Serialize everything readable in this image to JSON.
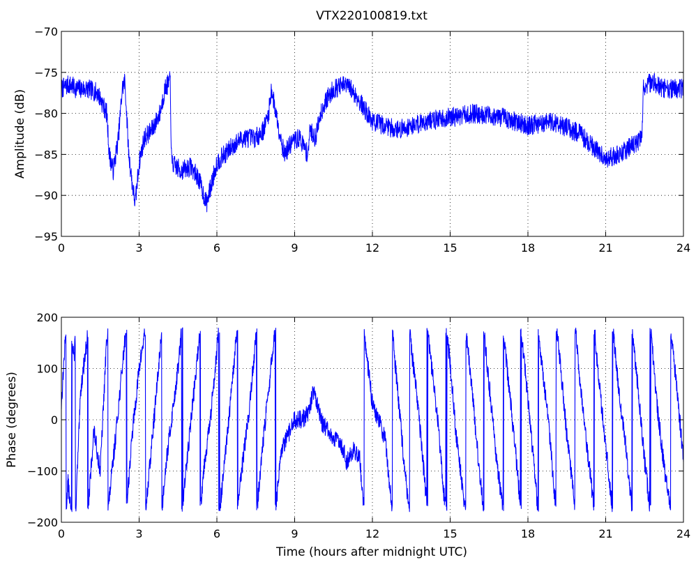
{
  "chart_data": [
    {
      "type": "line",
      "title": "VTX220100819.txt",
      "xlabel": "",
      "ylabel": "Amplitude (dB)",
      "xlim": [
        0,
        24
      ],
      "ylim": [
        -95,
        -70
      ],
      "xticks": [
        0,
        3,
        6,
        9,
        12,
        15,
        18,
        21,
        24
      ],
      "yticks": [
        -95,
        -90,
        -85,
        -80,
        -75,
        -70
      ],
      "grid": true,
      "line_color": "#0000ff",
      "series": [
        {
          "noise": 1.2,
          "x": [
            0,
            0.3,
            0.6,
            1.0,
            1.4,
            1.75,
            1.85,
            2.0,
            2.2,
            2.35,
            2.45,
            2.6,
            2.75,
            2.85,
            3.0,
            3.2,
            3.5,
            3.8,
            4.0,
            4.2,
            4.25,
            4.6,
            5.0,
            5.3,
            5.6,
            6.0,
            6.3,
            6.6,
            7.0,
            7.5,
            7.8,
            8.0,
            8.1,
            8.4,
            8.6,
            8.9,
            9.2,
            9.5,
            9.6,
            9.8,
            10.0,
            10.2,
            10.5,
            11.0,
            11.3,
            11.6,
            12.0,
            12.5,
            13.0,
            14.0,
            15.0,
            16.0,
            17.0,
            18.0,
            19.0,
            20.0,
            20.5,
            21.0,
            21.5,
            22.0,
            22.4,
            22.45,
            22.8,
            23.2,
            23.6,
            24.0
          ],
          "y": [
            -77,
            -76.5,
            -77,
            -77,
            -77.5,
            -80,
            -85,
            -87,
            -83,
            -77,
            -76,
            -85,
            -89,
            -91,
            -86,
            -83,
            -82,
            -80,
            -77,
            -76,
            -86,
            -87,
            -86.5,
            -88,
            -91,
            -86,
            -85,
            -84,
            -83,
            -83,
            -82,
            -80,
            -77,
            -82,
            -85,
            -83.5,
            -83,
            -85,
            -82,
            -83,
            -80,
            -78.5,
            -77,
            -76.5,
            -77.5,
            -79,
            -81,
            -81.5,
            -82,
            -81,
            -80.5,
            -80,
            -80.5,
            -81.5,
            -81,
            -82.5,
            -84,
            -85.5,
            -85,
            -84,
            -83,
            -77,
            -76,
            -77,
            -77,
            -77
          ]
        }
      ]
    },
    {
      "type": "line",
      "title": "",
      "xlabel": "Time (hours after midnight UTC)",
      "ylabel": "Phase (degrees)",
      "xlim": [
        0,
        24
      ],
      "ylim": [
        -200,
        200
      ],
      "xticks": [
        0,
        3,
        6,
        9,
        12,
        15,
        18,
        21,
        24
      ],
      "yticks": [
        -200,
        -100,
        0,
        100,
        200
      ],
      "grid": true,
      "line_color": "#0000ff",
      "series": [
        {
          "wrap": 180,
          "noise": 18,
          "x": [
            0,
            0.25,
            0.5,
            0.75,
            1.0,
            1.25,
            1.5,
            1.75,
            2.0,
            2.25,
            2.5,
            2.75,
            3.0,
            3.25,
            3.5,
            3.75,
            4.0,
            4.25,
            4.5,
            4.75,
            5.0,
            5.25,
            5.5,
            5.75,
            6.0,
            6.25,
            6.5,
            6.75,
            7.0,
            7.25,
            7.5,
            7.75,
            8.0,
            8.25,
            8.5,
            8.75,
            9.0,
            9.25,
            9.5,
            9.75,
            10.0,
            10.25,
            10.5,
            10.75,
            11.0,
            11.25,
            11.5,
            11.75,
            12.0,
            12.25,
            12.5,
            12.75,
            13.0,
            13.25,
            13.5,
            13.75,
            14.0,
            14.25,
            14.5,
            14.75,
            15.0,
            15.25,
            15.5,
            15.75,
            16.0,
            16.25,
            16.5,
            16.75,
            17.0,
            17.25,
            17.5,
            17.75,
            18.0,
            18.25,
            18.5,
            18.75,
            19.0,
            19.25,
            19.5,
            19.75,
            20.0,
            20.25,
            20.5,
            20.75,
            21.0,
            21.25,
            21.5,
            21.75,
            22.0,
            22.25,
            22.5,
            22.75,
            23.0,
            23.25,
            23.5,
            23.75,
            24.0
          ],
          "y": [
            30,
            240,
            120,
            420,
            520,
            700,
            620,
            880,
            1000,
            1130,
            1260,
            1420,
            1540,
            1620,
            1760,
            1900,
            2060,
            2160,
            2260,
            2390,
            2520,
            2640,
            2790,
            2880,
            3020,
            3130,
            3260,
            3400,
            3520,
            3620,
            3760,
            3900,
            4020,
            4140,
            4260,
            4290,
            4320,
            4320,
            4330,
            4380,
            4320,
            4300,
            4280,
            4280,
            4240,
            4260,
            4250,
            4100,
            3990,
            3960,
            3920,
            3790,
            3640,
            3500,
            3380,
            3270,
            3130,
            3000,
            2890,
            2740,
            2630,
            2480,
            2380,
            2270,
            2130,
            2000,
            1870,
            1740,
            1640,
            1510,
            1390,
            1250,
            1120,
            980,
            840,
            740,
            590,
            470,
            330,
            220,
            80,
            -40,
            -150,
            -290,
            -410,
            -530,
            -660,
            -760,
            -890,
            -1020,
            -1160,
            -1270,
            -1420,
            -1530,
            -1620,
            -1740,
            -1880
          ]
        }
      ]
    }
  ]
}
